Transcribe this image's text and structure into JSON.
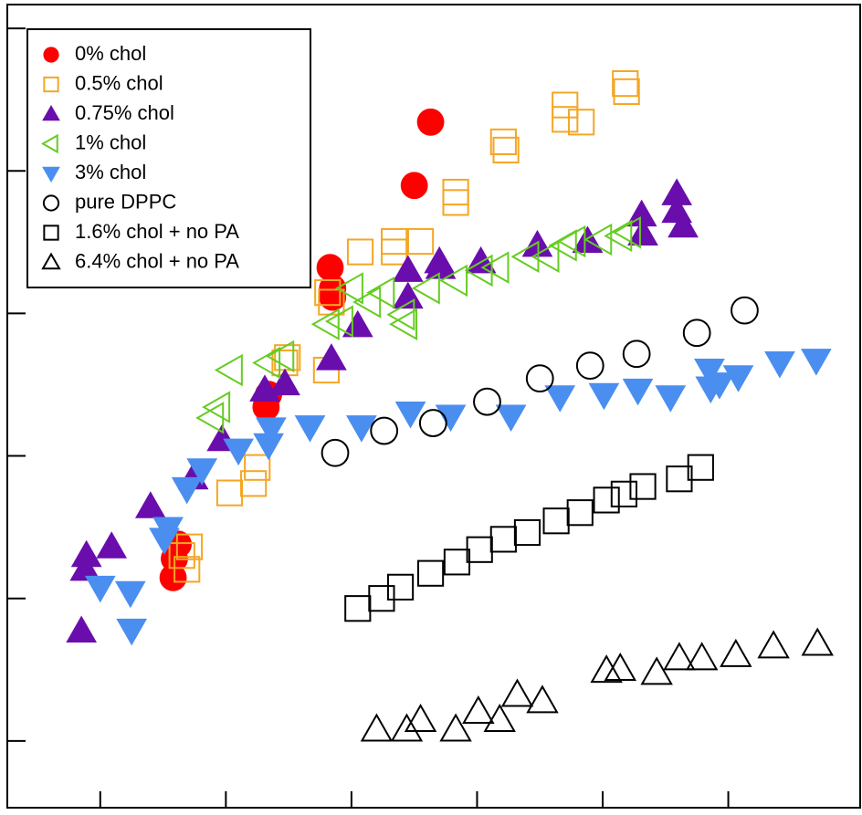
{
  "chart_data": {
    "type": "scatter",
    "xlim": [
      0.26,
      7.05
    ],
    "ylim": [
      0.34,
      147000
    ],
    "log_y": true,
    "xticks": [
      1,
      2,
      3,
      4,
      5,
      6
    ],
    "yticks": [
      1,
      10,
      100,
      1000,
      10000,
      100000
    ],
    "legend": "upper left",
    "series": [
      {
        "name": "0% chol",
        "color": "#ff0000",
        "marker": "circle",
        "filled": true,
        "x": [
          3.63,
          3.5,
          2.83,
          2.85,
          2.85,
          2.34,
          2.32,
          1.58,
          1.59,
          1.62
        ],
        "values": [
          22000,
          7900,
          2100,
          1300,
          1500,
          270,
          220,
          14,
          19,
          24
        ]
      },
      {
        "name": "0.5% chol",
        "color": "#f5a623",
        "marker": "square",
        "filled": false,
        "x": [
          5.18,
          5.19,
          4.7,
          4.7,
          4.83,
          4.21,
          4.23,
          3.83,
          3.83,
          3.07,
          3.34,
          3.55,
          3.34,
          2.81,
          2.84,
          2.49,
          2.47,
          2.8,
          2.25,
          2.22,
          2.03,
          1.71,
          1.69,
          1.65
        ],
        "values": [
          41000,
          36000,
          29000,
          23000,
          22000,
          16000,
          14000,
          7100,
          6000,
          2700,
          3200,
          3200,
          2700,
          1400,
          1200,
          490,
          450,
          400,
          83,
          64,
          55,
          23,
          16,
          20
        ]
      },
      {
        "name": "0.75% chol",
        "color": "#6a0dad",
        "marker": "triangle-up",
        "filled": true,
        "x": [
          5.59,
          5.59,
          5.64,
          5.31,
          5.32,
          4.88,
          4.48,
          4.03,
          3.7,
          3.71,
          3.45,
          3.45,
          3.05,
          2.84,
          2.47,
          2.31,
          1.97,
          1.74,
          1.4,
          1.09,
          0.89,
          0.88,
          0.85
        ],
        "values": [
          6900,
          5200,
          4100,
          4900,
          3600,
          3200,
          3000,
          2300,
          2300,
          2100,
          2000,
          1300,
          820,
          480,
          320,
          290,
          130,
          70,
          44,
          23,
          20,
          16,
          5.9
        ]
      },
      {
        "name": "1% chol",
        "color": "#66cc22",
        "marker": "triangle-left",
        "filled": false,
        "x": [
          5.14,
          5.21,
          4.98,
          4.77,
          4.7,
          4.56,
          4.4,
          4.16,
          4.03,
          3.83,
          3.61,
          3.41,
          3.43,
          3.25,
          3.14,
          3.0,
          2.81,
          2.92,
          2.45,
          2.34,
          2.04,
          1.89,
          1.94
        ],
        "values": [
          3500,
          3700,
          3300,
          3200,
          3000,
          2500,
          2500,
          2100,
          2000,
          1700,
          1500,
          980,
          840,
          1400,
          1200,
          1500,
          840,
          880,
          500,
          450,
          400,
          185,
          220
        ]
      },
      {
        "name": "3% chol",
        "color": "#4a8ef0",
        "marker": "triangle-down",
        "filled": true,
        "x": [
          6.7,
          6.41,
          6.08,
          5.93,
          5.85,
          5.86,
          5.54,
          5.28,
          5.01,
          4.66,
          4.27,
          3.79,
          3.47,
          3.08,
          2.67,
          2.36,
          2.34,
          2.1,
          1.81,
          1.69,
          1.54,
          1.51,
          1.24,
          1.25,
          1.0
        ],
        "values": [
          470,
          450,
          360,
          320,
          400,
          300,
          260,
          290,
          270,
          260,
          190,
          190,
          200,
          160,
          160,
          155,
          120,
          110,
          80,
          59,
          31,
          26,
          11,
          6.0,
          12
        ]
      },
      {
        "name": "pure DPPC",
        "color": "#000000",
        "marker": "circle",
        "filled": false,
        "x": [
          6.13,
          5.75,
          5.27,
          4.9,
          4.5,
          4.08,
          3.65,
          3.26,
          2.87
        ],
        "values": [
          1050,
          730,
          520,
          430,
          350,
          240,
          170,
          150,
          105
        ]
      },
      {
        "name": "1.6% chol + no PA",
        "color": "#000000",
        "marker": "square",
        "filled": false,
        "x": [
          5.78,
          5.61,
          5.32,
          5.17,
          5.03,
          4.82,
          4.63,
          4.4,
          4.21,
          4.02,
          3.84,
          3.63,
          3.39,
          3.24,
          3.05
        ],
        "values": [
          83,
          69,
          61,
          54,
          49,
          40,
          35,
          29,
          26,
          22,
          18,
          15,
          12,
          10,
          8.5
        ]
      },
      {
        "name": "6.4% chol + no PA",
        "color": "#000000",
        "marker": "triangle-up",
        "filled": false,
        "x": [
          6.71,
          6.36,
          6.06,
          5.79,
          5.61,
          5.43,
          5.14,
          5.03,
          4.52,
          4.32,
          4.18,
          4.01,
          3.83,
          3.55,
          3.44,
          3.2
        ],
        "values": [
          4.8,
          4.6,
          4.0,
          3.8,
          3.8,
          3.0,
          3.2,
          3.1,
          1.9,
          2.1,
          1.4,
          1.6,
          1.2,
          1.4,
          1.2,
          1.2
        ]
      }
    ]
  }
}
